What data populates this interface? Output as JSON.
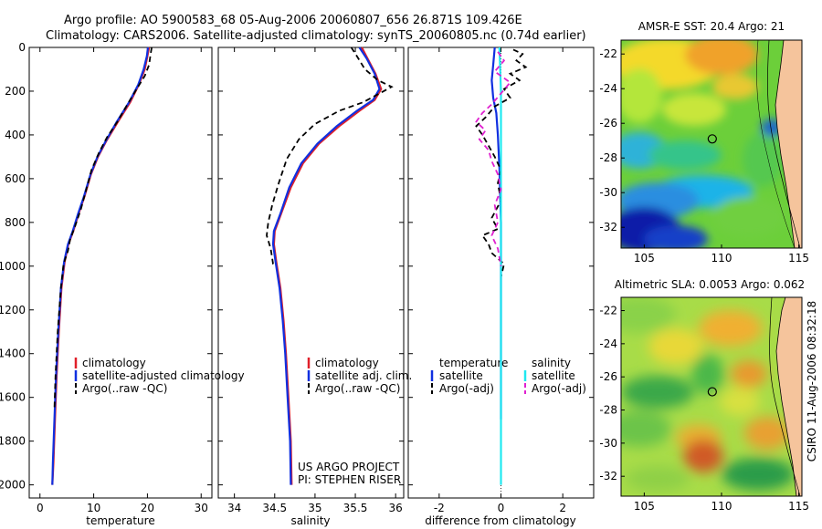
{
  "header": {
    "line1": "Argo profile: AO 5900583_68 05-Aug-2006 20060807_656 26.871S 109.426E",
    "line2": "Climatology: CARS2006. Satellite-adjusted climatology: synTS_20060805.nc (0.74d earlier)"
  },
  "side_label": "CSIRO 11-Aug-2006 08:32:18",
  "colors": {
    "climatology": "#e0202a",
    "satellite": "#1030e0",
    "argo": "#000000",
    "sal_satellite": "#20e8f0",
    "sal_argo": "#e020d0"
  },
  "chart_data": [
    {
      "type": "line",
      "name": "temperature-profile",
      "xlabel": "temperature",
      "ylabel": "",
      "xlim": [
        -2,
        32
      ],
      "ylim": [
        2060,
        0
      ],
      "xticks": [
        0,
        10,
        20,
        30
      ],
      "yticks": [
        0,
        200,
        400,
        600,
        800,
        1000,
        1200,
        1400,
        1600,
        1800,
        2000
      ],
      "legend": [
        "climatology",
        "satellite-adjusted climatology",
        "Argo(..raw -QC)"
      ],
      "series": [
        {
          "name": "climatology",
          "style": "solid",
          "color": "#e0202a",
          "points": [
            [
              20.3,
              0
            ],
            [
              20.0,
              40
            ],
            [
              19.5,
              100
            ],
            [
              18.4,
              170
            ],
            [
              16.8,
              250
            ],
            [
              14.5,
              340
            ],
            [
              12.3,
              430
            ],
            [
              10.8,
              500
            ],
            [
              9.5,
              580
            ],
            [
              8.3,
              680
            ],
            [
              7.2,
              760
            ],
            [
              6.2,
              840
            ],
            [
              5.3,
              900
            ],
            [
              4.6,
              980
            ],
            [
              4.0,
              1100
            ],
            [
              3.5,
              1300
            ],
            [
              3.1,
              1500
            ],
            [
              2.8,
              1700
            ],
            [
              2.5,
              1900
            ],
            [
              2.3,
              2000
            ]
          ]
        },
        {
          "name": "satellite",
          "style": "solid",
          "color": "#1030e0",
          "points": [
            [
              20.1,
              0
            ],
            [
              19.9,
              40
            ],
            [
              19.3,
              100
            ],
            [
              18.3,
              170
            ],
            [
              16.6,
              250
            ],
            [
              14.3,
              340
            ],
            [
              12.2,
              430
            ],
            [
              10.7,
              500
            ],
            [
              9.4,
              580
            ],
            [
              8.2,
              680
            ],
            [
              7.1,
              760
            ],
            [
              6.1,
              840
            ],
            [
              5.2,
              900
            ],
            [
              4.5,
              980
            ],
            [
              3.9,
              1100
            ],
            [
              3.4,
              1300
            ],
            [
              3.0,
              1500
            ],
            [
              2.7,
              1700
            ],
            [
              2.4,
              1900
            ],
            [
              2.3,
              2000
            ]
          ]
        },
        {
          "name": "argo",
          "style": "dashed",
          "color": "#000000",
          "points": [
            [
              20.8,
              0
            ],
            [
              20.6,
              30
            ],
            [
              20.3,
              80
            ],
            [
              19.5,
              130
            ],
            [
              18.0,
              190
            ],
            [
              16.3,
              260
            ],
            [
              14.4,
              340
            ],
            [
              12.5,
              410
            ],
            [
              11.0,
              480
            ],
            [
              9.6,
              560
            ],
            [
              8.6,
              650
            ],
            [
              7.6,
              740
            ],
            [
              6.5,
              820
            ],
            [
              5.6,
              880
            ],
            [
              5.2,
              930
            ],
            [
              4.4,
              990
            ],
            [
              3.9,
              1100
            ],
            [
              3.3,
              1300
            ],
            [
              2.9,
              1500
            ],
            [
              2.7,
              1650
            ]
          ]
        }
      ]
    },
    {
      "type": "line",
      "name": "salinity-profile",
      "xlabel": "salinity",
      "xlim": [
        33.8,
        36.1
      ],
      "ylim": [
        2060,
        0
      ],
      "xticks": [
        34,
        34.5,
        35,
        35.5,
        36
      ],
      "legend": [
        "climatology",
        "satellite adj. clim.",
        "Argo(..raw -QC)"
      ],
      "annotation": [
        "US ARGO PROJECT",
        "PI: STEPHEN RISER"
      ],
      "series": [
        {
          "name": "climatology",
          "style": "solid",
          "color": "#e0202a",
          "points": [
            [
              35.58,
              0
            ],
            [
              35.65,
              50
            ],
            [
              35.75,
              120
            ],
            [
              35.82,
              190
            ],
            [
              35.74,
              240
            ],
            [
              35.55,
              290
            ],
            [
              35.3,
              360
            ],
            [
              35.05,
              440
            ],
            [
              34.85,
              530
            ],
            [
              34.7,
              640
            ],
            [
              34.58,
              760
            ],
            [
              34.5,
              840
            ],
            [
              34.49,
              900
            ],
            [
              34.52,
              980
            ],
            [
              34.57,
              1100
            ],
            [
              34.61,
              1250
            ],
            [
              34.64,
              1400
            ],
            [
              34.67,
              1600
            ],
            [
              34.7,
              1800
            ],
            [
              34.71,
              2000
            ]
          ]
        },
        {
          "name": "satellite",
          "style": "solid",
          "color": "#1030e0",
          "points": [
            [
              35.55,
              0
            ],
            [
              35.64,
              50
            ],
            [
              35.74,
              120
            ],
            [
              35.8,
              190
            ],
            [
              35.72,
              240
            ],
            [
              35.52,
              290
            ],
            [
              35.27,
              360
            ],
            [
              35.03,
              440
            ],
            [
              34.83,
              530
            ],
            [
              34.68,
              640
            ],
            [
              34.57,
              760
            ],
            [
              34.49,
              840
            ],
            [
              34.48,
              900
            ],
            [
              34.51,
              980
            ],
            [
              34.56,
              1100
            ],
            [
              34.6,
              1250
            ],
            [
              34.63,
              1400
            ],
            [
              34.66,
              1600
            ],
            [
              34.69,
              1800
            ],
            [
              34.7,
              2000
            ]
          ]
        },
        {
          "name": "argo",
          "style": "dashed",
          "color": "#000000",
          "points": [
            [
              35.45,
              0
            ],
            [
              35.52,
              40
            ],
            [
              35.62,
              100
            ],
            [
              35.78,
              150
            ],
            [
              35.95,
              180
            ],
            [
              35.6,
              250
            ],
            [
              35.3,
              290
            ],
            [
              35.0,
              350
            ],
            [
              34.8,
              420
            ],
            [
              34.65,
              510
            ],
            [
              34.55,
              620
            ],
            [
              34.47,
              720
            ],
            [
              34.42,
              800
            ],
            [
              34.4,
              860
            ],
            [
              34.45,
              920
            ],
            [
              34.48,
              990
            ],
            [
              34.5,
              1000
            ]
          ]
        }
      ]
    },
    {
      "type": "line",
      "name": "difference-profile",
      "xlabel": "difference from climatology",
      "xlim": [
        -3,
        3
      ],
      "ylim": [
        2060,
        0
      ],
      "xticks": [
        -2,
        0,
        2
      ],
      "legend_temperature": {
        "title": "temperature",
        "items": [
          "satellite",
          "Argo(-adj)"
        ]
      },
      "legend_salinity": {
        "title": "salinity",
        "items": [
          "satellite",
          "Argo(-adj)"
        ]
      },
      "series": [
        {
          "name": "temperature satellite",
          "style": "solid",
          "color": "#1030e0",
          "points": [
            [
              -0.2,
              0
            ],
            [
              -0.25,
              80
            ],
            [
              -0.3,
              150
            ],
            [
              -0.25,
              230
            ],
            [
              -0.15,
              300
            ],
            [
              -0.1,
              400
            ],
            [
              -0.05,
              550
            ],
            [
              0,
              800
            ],
            [
              0,
              1000
            ],
            [
              0,
              1200
            ],
            [
              0,
              1400
            ],
            [
              0,
              1700
            ]
          ]
        },
        {
          "name": "temperature argo",
          "style": "dashed",
          "color": "#000000",
          "points": [
            [
              0.4,
              10
            ],
            [
              0.7,
              30
            ],
            [
              0.5,
              60
            ],
            [
              0.8,
              90
            ],
            [
              0.3,
              120
            ],
            [
              0.6,
              150
            ],
            [
              0.1,
              190
            ],
            [
              0.3,
              230
            ],
            [
              -0.2,
              270
            ],
            [
              -0.5,
              320
            ],
            [
              -0.8,
              360
            ],
            [
              -0.6,
              400
            ],
            [
              -0.4,
              450
            ],
            [
              -0.2,
              500
            ],
            [
              0,
              560
            ],
            [
              -0.1,
              620
            ],
            [
              0,
              700
            ],
            [
              -0.3,
              780
            ],
            [
              -0.1,
              830
            ],
            [
              -0.6,
              860
            ],
            [
              -0.4,
              900
            ],
            [
              -0.3,
              940
            ],
            [
              0.1,
              990
            ],
            [
              0,
              1050
            ]
          ]
        },
        {
          "name": "salinity satellite",
          "style": "solid",
          "color": "#20e8f0",
          "points": [
            [
              -0.05,
              0
            ],
            [
              0,
              200
            ],
            [
              0,
              400
            ],
            [
              0,
              600
            ],
            [
              0,
              800
            ],
            [
              0,
              1000
            ],
            [
              0,
              1200
            ],
            [
              0,
              1400
            ],
            [
              0,
              1600
            ],
            [
              0,
              1800
            ],
            [
              0,
              2000
            ]
          ]
        },
        {
          "name": "salinity argo",
          "style": "dashed",
          "color": "#e020d0",
          "points": [
            [
              -0.1,
              20
            ],
            [
              0.1,
              60
            ],
            [
              -0.2,
              110
            ],
            [
              0.3,
              160
            ],
            [
              0,
              210
            ],
            [
              -0.3,
              260
            ],
            [
              -0.6,
              300
            ],
            [
              -0.8,
              340
            ],
            [
              -0.5,
              380
            ],
            [
              -0.7,
              420
            ],
            [
              -0.4,
              470
            ],
            [
              -0.3,
              520
            ],
            [
              -0.1,
              580
            ],
            [
              0,
              650
            ],
            [
              -0.2,
              720
            ],
            [
              -0.1,
              800
            ],
            [
              -0.3,
              860
            ],
            [
              -0.1,
              920
            ],
            [
              0,
              1000
            ]
          ]
        }
      ]
    },
    {
      "type": "heatmap",
      "name": "sst-map",
      "title": "AMSR-E SST: 20.4 Argo: 21",
      "xlim": [
        103.5,
        115.2
      ],
      "ylim": [
        -33.2,
        -21.2
      ],
      "xticks": [
        105,
        110,
        115
      ],
      "yticks": [
        -22,
        -24,
        -26,
        -28,
        -30,
        -32
      ],
      "marker": {
        "lon": 109.4,
        "lat": -26.9
      }
    },
    {
      "type": "heatmap",
      "name": "sla-map",
      "title": "Altimetric SLA: 0.0053 Argo: 0.062",
      "xlim": [
        103.5,
        115.2
      ],
      "ylim": [
        -33.2,
        -21.2
      ],
      "xticks": [
        105,
        110,
        115
      ],
      "yticks": [
        -22,
        -24,
        -26,
        -28,
        -30,
        -32
      ],
      "marker": {
        "lon": 109.4,
        "lat": -26.9
      }
    }
  ]
}
